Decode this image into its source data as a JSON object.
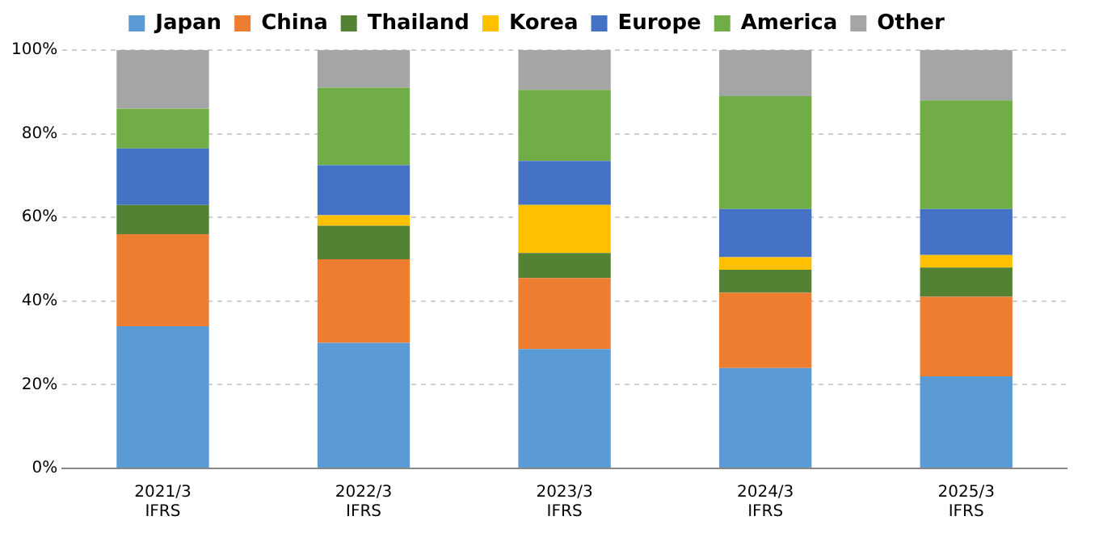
{
  "chart_data": {
    "type": "bar",
    "stacked": true,
    "categories": [
      "2021/3\nIFRS",
      "2022/3\nIFRS",
      "2023/3\nIFRS",
      "2024/3\nIFRS",
      "2025/3\nIFRS"
    ],
    "series": [
      {
        "name": "Japan",
        "color": "#5b9bd5",
        "values": [
          34,
          30,
          28.5,
          24,
          22
        ]
      },
      {
        "name": "China",
        "color": "#ed7d31",
        "values": [
          22,
          20,
          17,
          18,
          19
        ]
      },
      {
        "name": "Thailand",
        "color": "#548235",
        "values": [
          7,
          8,
          6,
          5.5,
          7
        ]
      },
      {
        "name": "Korea",
        "color": "#ffc000",
        "values": [
          0,
          2.5,
          11.5,
          3,
          3
        ]
      },
      {
        "name": "Europe",
        "color": "#4472c4",
        "values": [
          13.5,
          12,
          10.5,
          11.5,
          11
        ]
      },
      {
        "name": "America",
        "color": "#70ad47",
        "values": [
          9.5,
          18.5,
          17,
          27,
          26
        ]
      },
      {
        "name": "Other",
        "color": "#a5a5a5",
        "values": [
          14,
          9,
          9.5,
          11,
          12
        ]
      }
    ],
    "ylim": [
      0,
      100
    ],
    "yticks": [
      {
        "value": 0,
        "label": "0%"
      },
      {
        "value": 20,
        "label": "20%"
      },
      {
        "value": 40,
        "label": "40%"
      },
      {
        "value": 60,
        "label": "60%"
      },
      {
        "value": 80,
        "label": "80%"
      },
      {
        "value": 100,
        "label": "100%"
      }
    ],
    "grid": "y",
    "legend": "top"
  }
}
